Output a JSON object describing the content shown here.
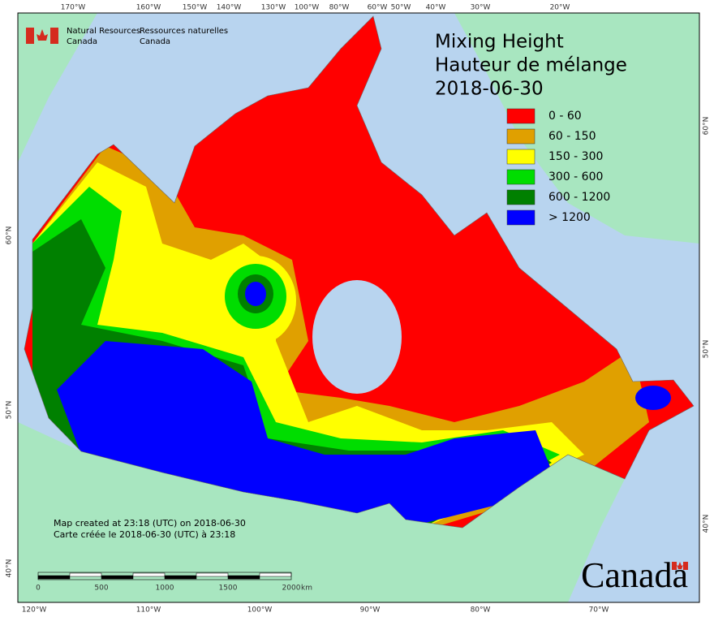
{
  "header": {
    "org_en": [
      "Natural Resources",
      "Canada"
    ],
    "org_fr": [
      "Ressources naturelles",
      "Canada"
    ]
  },
  "title": [
    "Mixing Height",
    "Hauteur de mélange",
    "2018-06-30"
  ],
  "legend": [
    {
      "label": "0 - 60",
      "color": "#ff0000"
    },
    {
      "label": "60 - 150",
      "color": "#e0a000"
    },
    {
      "label": "150 - 300",
      "color": "#ffff00"
    },
    {
      "label": "300 - 600",
      "color": "#00dd00"
    },
    {
      "label": "600 - 1200",
      "color": "#008000"
    },
    {
      "label": "> 1200",
      "color": "#0000ff"
    }
  ],
  "graticule": {
    "top": [
      "170°W",
      "160°W",
      "150°W",
      "140°W",
      "130°W",
      "100°W",
      "80°W",
      "60°W",
      "50°W",
      "40°W",
      "30°W",
      "20°W"
    ],
    "bottom": [
      "120°W",
      "110°W",
      "100°W",
      "90°W",
      "80°W",
      "70°W"
    ],
    "left": [
      "60°N",
      "50°N",
      "40°N"
    ],
    "right": [
      "60°N",
      "50°N",
      "40°N"
    ]
  },
  "notes": [
    "Map created at 23:18 (UTC) on 2018-06-30",
    "Carte créée le 2018-06-30 (UTC) à 23:18"
  ],
  "scale_bar": {
    "labels": [
      "0",
      "500",
      "1000",
      "1500",
      "2000"
    ],
    "unit": "km"
  },
  "wordmark": "Canada"
}
